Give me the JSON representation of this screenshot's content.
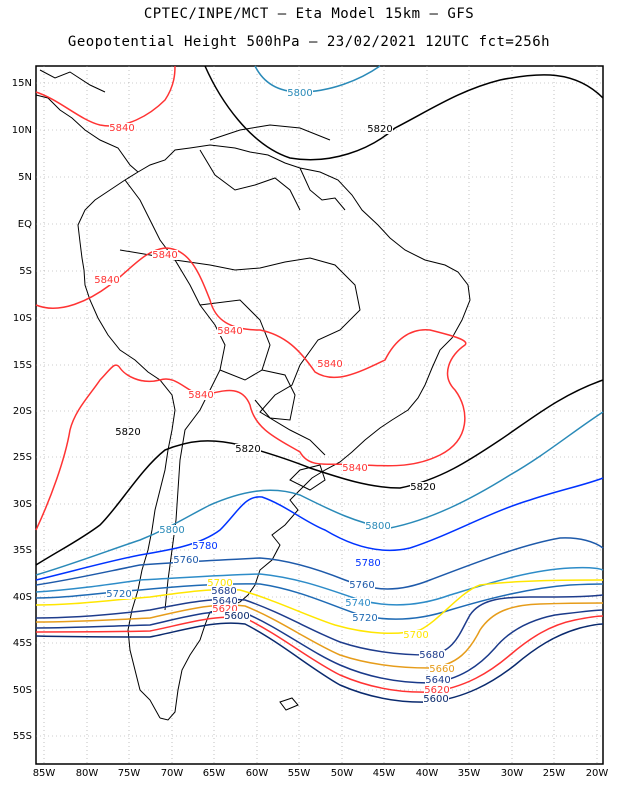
{
  "header": {
    "line1": "CPTEC/INPE/MCT –  Eta Model 15km – GFS",
    "line2": "Geopotential Height 500hPa – 23/02/2021 12UTC fct=256h"
  },
  "map": {
    "lat_ticks": [
      "15N",
      "10N",
      "5N",
      "EQ",
      "5S",
      "10S",
      "15S",
      "20S",
      "25S",
      "30S",
      "35S",
      "40S",
      "45S",
      "50S",
      "55S"
    ],
    "lon_ticks": [
      "85W",
      "80W",
      "75W",
      "70W",
      "65W",
      "60W",
      "55W",
      "50W",
      "45W",
      "40W",
      "35W",
      "30W",
      "25W",
      "20W"
    ],
    "colors": {
      "5580": "#000066",
      "5600": "#0a2a6e",
      "5620": "#ff3333",
      "5640": "#1a3a8a",
      "5660": "#e69c1a",
      "5680": "#1e3c8c",
      "5700": "#ffe600",
      "5720": "#1e6ab4",
      "5740": "#2d8cc8",
      "5760": "#1e5aaa",
      "5780": "#0033ff",
      "5800": "#2a8ab8",
      "5820": "#000000",
      "5840": "#ff3333",
      "coast": "#000000",
      "grid": "#999999"
    },
    "contour_labels": [
      {
        "text": "5800",
        "key": "5800"
      },
      {
        "text": "5820",
        "key": "5820"
      },
      {
        "text": "5840",
        "key": "5840"
      },
      {
        "text": "5840",
        "key": "5840"
      },
      {
        "text": "5840",
        "key": "5840"
      },
      {
        "text": "5840",
        "key": "5840"
      },
      {
        "text": "5840",
        "key": "5840"
      },
      {
        "text": "5840",
        "key": "5840"
      },
      {
        "text": "5840",
        "key": "5840"
      },
      {
        "text": "5820",
        "key": "5820"
      },
      {
        "text": "5820",
        "key": "5820"
      },
      {
        "text": "5820",
        "key": "5820"
      },
      {
        "text": "5840",
        "key": "5840"
      },
      {
        "text": "5800",
        "key": "5800"
      },
      {
        "text": "5800",
        "key": "5800"
      },
      {
        "text": "5780",
        "key": "5780"
      },
      {
        "text": "5780",
        "key": "5780"
      },
      {
        "text": "5760",
        "key": "5760"
      },
      {
        "text": "5760",
        "key": "5760"
      },
      {
        "text": "5740",
        "key": "5740"
      },
      {
        "text": "5720",
        "key": "5720"
      },
      {
        "text": "5720",
        "key": "5720"
      },
      {
        "text": "5700",
        "key": "5700"
      },
      {
        "text": "5700",
        "key": "5700"
      },
      {
        "text": "5680",
        "key": "5680"
      },
      {
        "text": "5680",
        "key": "5680"
      },
      {
        "text": "5660",
        "key": "5660"
      },
      {
        "text": "5640",
        "key": "5640"
      },
      {
        "text": "5640",
        "key": "5640"
      },
      {
        "text": "5620",
        "key": "5620"
      },
      {
        "text": "5620",
        "key": "5620"
      },
      {
        "text": "5600",
        "key": "5600"
      },
      {
        "text": "5600",
        "key": "5600"
      }
    ]
  }
}
